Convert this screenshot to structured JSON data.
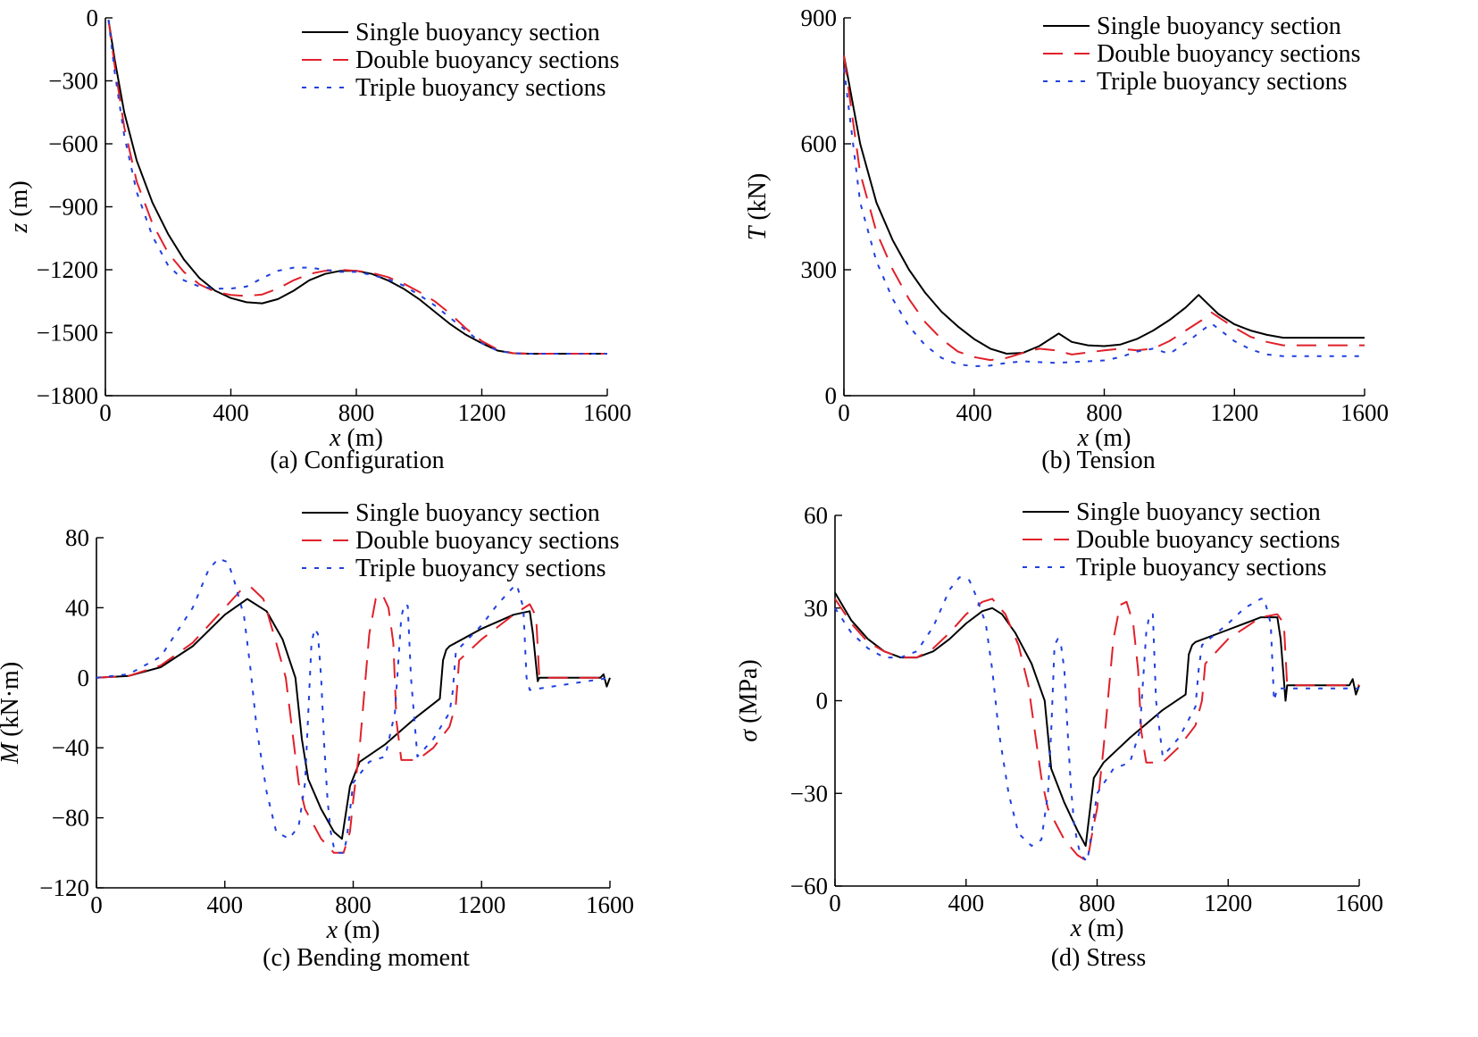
{
  "series_styles": [
    {
      "color": "#000000",
      "dash": ""
    },
    {
      "color": "#e0202a",
      "dash": "22 13"
    },
    {
      "color": "#2040e0",
      "dash": "5 9"
    }
  ],
  "chart_data": [
    {
      "type": "line",
      "caption": "(a) Configuration",
      "xlabel_var": "x",
      "xlabel_unit": " (m)",
      "ylabel_var": "z",
      "ylabel_unit": " (m)",
      "xlim": [
        0,
        1600
      ],
      "ylim": [
        -1800,
        0
      ],
      "xticks": [
        0,
        400,
        800,
        1200,
        1600
      ],
      "yticks": [
        0,
        -300,
        -600,
        -900,
        -1200,
        -1500,
        -1800
      ],
      "ytick_labels": [
        "0",
        "−300",
        "−600",
        "−900",
        "−1200",
        "−1500",
        "−1800"
      ],
      "grid": false,
      "legend_position": "top-right",
      "series": [
        {
          "name": "Single buoyancy section",
          "x": [
            10,
            30,
            60,
            100,
            150,
            200,
            250,
            300,
            350,
            400,
            450,
            500,
            550,
            600,
            650,
            700,
            750,
            800,
            850,
            900,
            950,
            1000,
            1050,
            1100,
            1150,
            1200,
            1250,
            1300,
            1350,
            1400,
            1600
          ],
          "y": [
            -10,
            -200,
            -450,
            -680,
            -880,
            -1030,
            -1150,
            -1240,
            -1300,
            -1335,
            -1355,
            -1360,
            -1340,
            -1300,
            -1250,
            -1220,
            -1205,
            -1205,
            -1220,
            -1250,
            -1290,
            -1340,
            -1400,
            -1460,
            -1510,
            -1550,
            -1585,
            -1598,
            -1600,
            -1600,
            -1600
          ]
        },
        {
          "name": "Double buoyancy sections",
          "x": [
            10,
            30,
            60,
            100,
            150,
            200,
            250,
            300,
            350,
            400,
            450,
            500,
            550,
            600,
            650,
            700,
            750,
            800,
            850,
            900,
            950,
            1000,
            1050,
            1100,
            1150,
            1200,
            1250,
            1300,
            1350,
            1400,
            1600
          ],
          "y": [
            -10,
            -230,
            -520,
            -780,
            -980,
            -1120,
            -1210,
            -1270,
            -1305,
            -1320,
            -1325,
            -1318,
            -1290,
            -1250,
            -1220,
            -1205,
            -1200,
            -1205,
            -1215,
            -1235,
            -1265,
            -1305,
            -1350,
            -1410,
            -1480,
            -1540,
            -1580,
            -1598,
            -1600,
            -1600,
            -1600
          ]
        },
        {
          "name": "Triple buoyancy sections",
          "x": [
            10,
            30,
            60,
            100,
            150,
            200,
            250,
            300,
            350,
            400,
            450,
            500,
            550,
            600,
            650,
            700,
            750,
            800,
            850,
            900,
            950,
            1000,
            1050,
            1100,
            1150,
            1200,
            1250,
            1300,
            1350,
            1400,
            1600
          ],
          "y": [
            -10,
            -260,
            -560,
            -830,
            -1040,
            -1180,
            -1250,
            -1280,
            -1290,
            -1290,
            -1280,
            -1240,
            -1205,
            -1190,
            -1190,
            -1200,
            -1210,
            -1210,
            -1225,
            -1245,
            -1275,
            -1320,
            -1370,
            -1430,
            -1490,
            -1550,
            -1585,
            -1598,
            -1600,
            -1600,
            -1600
          ]
        }
      ]
    },
    {
      "type": "line",
      "caption": "(b) Tension",
      "xlabel_var": "x",
      "xlabel_unit": " (m)",
      "ylabel_var": "T",
      "ylabel_unit": " (kN)",
      "xlim": [
        0,
        1600
      ],
      "ylim": [
        0,
        900
      ],
      "xticks": [
        0,
        400,
        800,
        1200,
        1600
      ],
      "yticks": [
        0,
        300,
        600,
        900
      ],
      "ytick_labels": [
        "0",
        "300",
        "600",
        "900"
      ],
      "grid": false,
      "legend_position": "top-right",
      "series": [
        {
          "name": "Single buoyancy section",
          "x": [
            0,
            50,
            100,
            150,
            200,
            250,
            300,
            350,
            400,
            450,
            500,
            550,
            600,
            660,
            700,
            750,
            800,
            850,
            900,
            950,
            1000,
            1050,
            1090,
            1150,
            1200,
            1250,
            1300,
            1350,
            1600
          ],
          "y": [
            810,
            600,
            460,
            370,
            300,
            245,
            200,
            165,
            135,
            112,
            100,
            102,
            118,
            148,
            128,
            120,
            118,
            122,
            135,
            155,
            180,
            210,
            240,
            195,
            170,
            155,
            145,
            138,
            138
          ]
        },
        {
          "name": "Double buoyancy sections",
          "x": [
            0,
            50,
            100,
            150,
            200,
            250,
            300,
            350,
            400,
            450,
            500,
            550,
            600,
            650,
            700,
            750,
            800,
            850,
            900,
            950,
            1000,
            1050,
            1100,
            1130,
            1200,
            1250,
            1300,
            1350,
            1600
          ],
          "y": [
            810,
            530,
            390,
            300,
            230,
            175,
            135,
            105,
            92,
            85,
            90,
            102,
            112,
            108,
            98,
            103,
            108,
            112,
            108,
            112,
            130,
            155,
            180,
            198,
            162,
            140,
            128,
            120,
            120
          ]
        },
        {
          "name": "Triple buoyancy sections",
          "x": [
            0,
            50,
            100,
            150,
            200,
            250,
            300,
            350,
            400,
            450,
            500,
            550,
            600,
            650,
            700,
            750,
            800,
            850,
            900,
            950,
            1000,
            1050,
            1100,
            1130,
            1200,
            1250,
            1300,
            1350,
            1600
          ],
          "y": [
            780,
            460,
            320,
            230,
            165,
            120,
            90,
            75,
            70,
            72,
            78,
            82,
            80,
            78,
            80,
            82,
            84,
            92,
            105,
            112,
            100,
            125,
            155,
            172,
            130,
            110,
            98,
            94,
            94
          ]
        }
      ]
    },
    {
      "type": "line",
      "caption": "(c) Bending moment",
      "xlabel_var": "x",
      "xlabel_unit": " (m)",
      "ylabel_var": "M",
      "ylabel_unit": " (kN·m)",
      "xlim": [
        0,
        1600
      ],
      "ylim": [
        -120,
        80
      ],
      "xticks": [
        0,
        400,
        800,
        1200,
        1600
      ],
      "yticks": [
        80,
        40,
        0,
        -40,
        -80,
        -120
      ],
      "ytick_labels": [
        "80",
        "40",
        "0",
        "−40",
        "−80",
        "−120"
      ],
      "grid": false,
      "legend_position": "top-right",
      "series": [
        {
          "name": "Single buoyancy section",
          "x": [
            0,
            100,
            200,
            300,
            400,
            470,
            530,
            580,
            620,
            640,
            660,
            700,
            740,
            765,
            790,
            820,
            900,
            1000,
            1070,
            1080,
            1090,
            1100,
            1200,
            1300,
            1350,
            1360,
            1375,
            1380,
            1400,
            1570,
            1580,
            1590,
            1600
          ],
          "y": [
            0,
            1,
            6,
            18,
            36,
            45,
            38,
            22,
            0,
            -35,
            -58,
            -75,
            -88,
            -92,
            -62,
            -48,
            -38,
            -22,
            -12,
            10,
            16,
            18,
            28,
            36,
            38,
            25,
            -2,
            0,
            0,
            0,
            2,
            -5,
            0
          ]
        },
        {
          "name": "Double buoyancy sections",
          "x": [
            0,
            100,
            200,
            300,
            400,
            450,
            480,
            520,
            560,
            590,
            610,
            630,
            650,
            700,
            740,
            770,
            790,
            800,
            820,
            850,
            870,
            890,
            910,
            925,
            935,
            950,
            1000,
            1050,
            1100,
            1120,
            1130,
            1200,
            1300,
            1350,
            1370,
            1380,
            1600
          ],
          "y": [
            0,
            1,
            7,
            20,
            40,
            50,
            52,
            45,
            20,
            0,
            -30,
            -60,
            -75,
            -92,
            -100,
            -100,
            -88,
            -70,
            -40,
            25,
            45,
            48,
            40,
            20,
            -25,
            -47,
            -47,
            -40,
            -28,
            -15,
            10,
            22,
            36,
            42,
            35,
            0,
            0
          ]
        },
        {
          "name": "Triple buoyancy sections",
          "x": [
            0,
            100,
            200,
            300,
            350,
            380,
            410,
            430,
            460,
            480,
            500,
            530,
            560,
            600,
            630,
            650,
            660,
            670,
            680,
            690,
            700,
            710,
            720,
            730,
            740,
            750,
            770,
            780,
            800,
            850,
            900,
            930,
            950,
            960,
            970,
            980,
            1000,
            1050,
            1100,
            1110,
            1120,
            1200,
            1250,
            1300,
            1310,
            1330,
            1340,
            1350,
            1600
          ],
          "y": [
            0,
            2,
            12,
            40,
            62,
            68,
            66,
            55,
            35,
            5,
            -30,
            -65,
            -88,
            -92,
            -85,
            -60,
            -20,
            20,
            28,
            25,
            0,
            -40,
            -70,
            -88,
            -97,
            -100,
            -100,
            -92,
            -60,
            -48,
            -45,
            -20,
            35,
            42,
            41,
            0,
            -45,
            -35,
            -20,
            -8,
            15,
            30,
            42,
            52,
            53,
            40,
            0,
            -7,
            0
          ]
        }
      ]
    },
    {
      "type": "line",
      "caption": "(d) Stress",
      "xlabel_var": "x",
      "xlabel_unit": " (m)",
      "ylabel_var": "σ",
      "ylabel_unit": " (MPa)",
      "xlim": [
        0,
        1600
      ],
      "ylim": [
        -60,
        60
      ],
      "xticks": [
        0,
        400,
        800,
        1200,
        1600
      ],
      "yticks": [
        60,
        30,
        0,
        -30,
        -60
      ],
      "ytick_labels": [
        "60",
        "30",
        "0",
        "−30",
        "−60"
      ],
      "grid": false,
      "legend_position": "top-right",
      "series": [
        {
          "name": "Single buoyancy section",
          "x": [
            0,
            50,
            100,
            150,
            200,
            250,
            300,
            350,
            400,
            450,
            480,
            510,
            550,
            600,
            640,
            660,
            700,
            740,
            765,
            790,
            820,
            900,
            1000,
            1070,
            1080,
            1090,
            1100,
            1200,
            1300,
            1350,
            1360,
            1375,
            1380,
            1400,
            1570,
            1580,
            1590,
            1600
          ],
          "y": [
            35,
            26,
            20,
            16,
            14,
            14,
            16,
            20,
            25,
            29,
            30,
            28,
            22,
            12,
            0,
            -22,
            -33,
            -42,
            -47,
            -25,
            -20,
            -12,
            -3,
            2,
            15,
            18,
            19,
            23,
            27,
            27,
            20,
            0,
            5,
            5,
            5,
            7,
            2,
            5
          ]
        },
        {
          "name": "Double buoyancy sections",
          "x": [
            0,
            50,
            100,
            150,
            200,
            250,
            300,
            350,
            400,
            450,
            480,
            520,
            560,
            590,
            610,
            630,
            650,
            700,
            740,
            770,
            790,
            800,
            820,
            850,
            870,
            890,
            910,
            925,
            935,
            950,
            1000,
            1050,
            1100,
            1120,
            1130,
            1200,
            1300,
            1350,
            1370,
            1380,
            1600
          ],
          "y": [
            33,
            25,
            19,
            16,
            14,
            14,
            17,
            22,
            28,
            32,
            33,
            28,
            18,
            5,
            -10,
            -25,
            -35,
            -45,
            -50,
            -52,
            -40,
            -35,
            -15,
            20,
            31,
            32,
            25,
            10,
            -10,
            -20,
            -20,
            -15,
            -8,
            0,
            12,
            20,
            27,
            28,
            25,
            5,
            5
          ]
        },
        {
          "name": "Triple buoyancy sections",
          "x": [
            0,
            50,
            100,
            150,
            200,
            250,
            300,
            350,
            380,
            410,
            430,
            460,
            480,
            500,
            530,
            560,
            600,
            630,
            650,
            660,
            670,
            680,
            690,
            700,
            710,
            720,
            730,
            740,
            750,
            770,
            780,
            800,
            850,
            900,
            930,
            950,
            960,
            970,
            980,
            1000,
            1050,
            1100,
            1110,
            1120,
            1200,
            1250,
            1300,
            1310,
            1330,
            1340,
            1350,
            1600
          ],
          "y": [
            30,
            22,
            17,
            14,
            14,
            16,
            24,
            36,
            40,
            39,
            34,
            25,
            10,
            -10,
            -30,
            -43,
            -47,
            -45,
            -30,
            -10,
            18,
            20,
            18,
            10,
            -10,
            -28,
            -40,
            -46,
            -50,
            -52,
            -45,
            -30,
            -22,
            -20,
            -10,
            22,
            28,
            28,
            0,
            -18,
            -12,
            -2,
            10,
            18,
            25,
            30,
            33,
            33,
            25,
            0,
            4,
            4
          ]
        }
      ]
    }
  ]
}
